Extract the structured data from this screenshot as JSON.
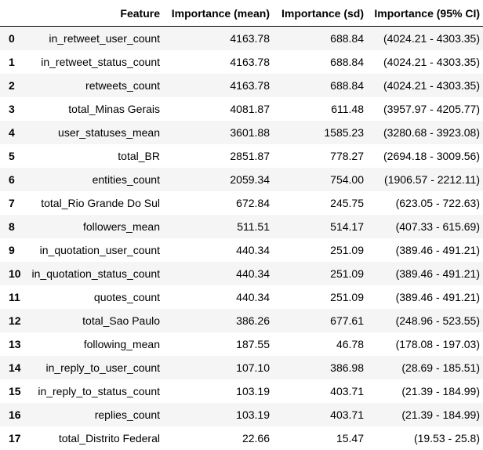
{
  "table": {
    "columns": [
      "",
      "Feature",
      "Importance (mean)",
      "Importance (sd)",
      "Importance (95% CI)"
    ],
    "rows": [
      {
        "index": "0",
        "feature": "in_retweet_user_count",
        "mean": "4163.78",
        "sd": "688.84",
        "ci": "(4024.21 - 4303.35)"
      },
      {
        "index": "1",
        "feature": "in_retweet_status_count",
        "mean": "4163.78",
        "sd": "688.84",
        "ci": "(4024.21 - 4303.35)"
      },
      {
        "index": "2",
        "feature": "retweets_count",
        "mean": "4163.78",
        "sd": "688.84",
        "ci": "(4024.21 - 4303.35)"
      },
      {
        "index": "3",
        "feature": "total_Minas Gerais",
        "mean": "4081.87",
        "sd": "611.48",
        "ci": "(3957.97 - 4205.77)"
      },
      {
        "index": "4",
        "feature": "user_statuses_mean",
        "mean": "3601.88",
        "sd": "1585.23",
        "ci": "(3280.68 - 3923.08)"
      },
      {
        "index": "5",
        "feature": "total_BR",
        "mean": "2851.87",
        "sd": "778.27",
        "ci": "(2694.18 - 3009.56)"
      },
      {
        "index": "6",
        "feature": "entities_count",
        "mean": "2059.34",
        "sd": "754.00",
        "ci": "(1906.57 - 2212.11)"
      },
      {
        "index": "7",
        "feature": "total_Rio Grande Do Sul",
        "mean": "672.84",
        "sd": "245.75",
        "ci": "(623.05 - 722.63)"
      },
      {
        "index": "8",
        "feature": "followers_mean",
        "mean": "511.51",
        "sd": "514.17",
        "ci": "(407.33 - 615.69)"
      },
      {
        "index": "9",
        "feature": "in_quotation_user_count",
        "mean": "440.34",
        "sd": "251.09",
        "ci": "(389.46 - 491.21)"
      },
      {
        "index": "10",
        "feature": "in_quotation_status_count",
        "mean": "440.34",
        "sd": "251.09",
        "ci": "(389.46 - 491.21)"
      },
      {
        "index": "11",
        "feature": "quotes_count",
        "mean": "440.34",
        "sd": "251.09",
        "ci": "(389.46 - 491.21)"
      },
      {
        "index": "12",
        "feature": "total_Sao Paulo",
        "mean": "386.26",
        "sd": "677.61",
        "ci": "(248.96 - 523.55)"
      },
      {
        "index": "13",
        "feature": "following_mean",
        "mean": "187.55",
        "sd": "46.78",
        "ci": "(178.08 - 197.03)"
      },
      {
        "index": "14",
        "feature": "in_reply_to_user_count",
        "mean": "107.10",
        "sd": "386.98",
        "ci": "(28.69 - 185.51)"
      },
      {
        "index": "15",
        "feature": "in_reply_to_status_count",
        "mean": "103.19",
        "sd": "403.71",
        "ci": "(21.39 - 184.99)"
      },
      {
        "index": "16",
        "feature": "replies_count",
        "mean": "103.19",
        "sd": "403.71",
        "ci": "(21.39 - 184.99)"
      },
      {
        "index": "17",
        "feature": "total_Distrito Federal",
        "mean": "22.66",
        "sd": "15.47",
        "ci": "(19.53 - 25.8)"
      }
    ]
  },
  "colors": {
    "stripe": "#f5f5f5",
    "header_rule": "#000000"
  }
}
